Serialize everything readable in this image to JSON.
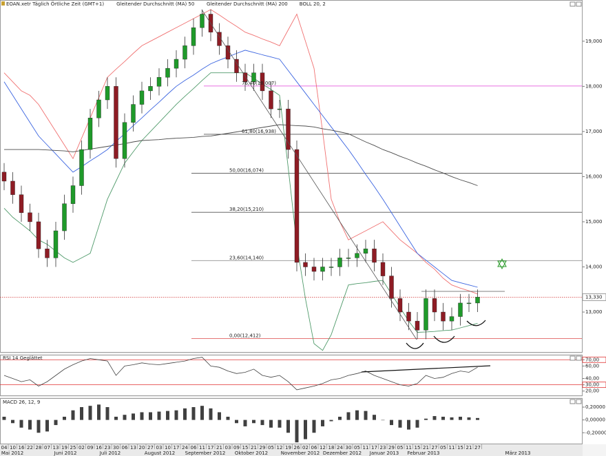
{
  "chart_data": [
    {
      "type": "candlestick",
      "title": "EOAN.xetr Täglich Örtliche Zeit (GMT+1)",
      "categories": [
        "04",
        "10",
        "16",
        "22",
        "28",
        "07",
        "13",
        "19",
        "25",
        "02",
        "09",
        "16",
        "23",
        "30",
        "06",
        "13",
        "20",
        "27",
        "03",
        "10",
        "17",
        "24",
        "06",
        "11",
        "17",
        "21",
        "03",
        "09",
        "15",
        "21",
        "29",
        "05",
        "12",
        "19",
        "26",
        "02",
        "06",
        "12",
        "18",
        "24",
        "30",
        "05",
        "11",
        "17",
        "23",
        "29",
        "05",
        "11",
        "15",
        "21",
        "27",
        "05",
        "11",
        "15",
        "21",
        "27"
      ],
      "periods": [
        "Mai 2012",
        "Juni 2012",
        "Juli 2012",
        "August 2012",
        "September 2012",
        "Oktober 2012",
        "November 2012",
        "Dezember 2012",
        "Januar 2013",
        "Februar 2013",
        "März 2013"
      ],
      "open": [
        16.1,
        15.9,
        15.6,
        15.2,
        15.0,
        14.4,
        14.2,
        14.8,
        15.4,
        15.8,
        16.6,
        17.3,
        17.7,
        18.0,
        16.4,
        17.2,
        17.6,
        17.9,
        18.0,
        18.2,
        18.4,
        18.6,
        18.9,
        19.3,
        19.6,
        19.2,
        18.9,
        18.6,
        18.3,
        18.1,
        18.3,
        17.9,
        17.5,
        17.5,
        16.6,
        14.1,
        14.0,
        13.9,
        14.0,
        14.0,
        14.2,
        14.2,
        14.3,
        14.4,
        14.1,
        13.8,
        13.3,
        13.0,
        12.8,
        12.6,
        13.3,
        13.0,
        12.8,
        12.9,
        13.2,
        13.2
      ],
      "high": [
        16.3,
        16.1,
        15.8,
        15.4,
        15.2,
        14.6,
        15.0,
        15.6,
        16.0,
        16.8,
        17.5,
        17.9,
        18.2,
        18.2,
        17.4,
        17.8,
        18.1,
        18.2,
        18.4,
        18.6,
        18.8,
        19.1,
        19.5,
        19.7,
        19.7,
        19.4,
        19.1,
        18.8,
        18.5,
        18.5,
        18.5,
        18.1,
        17.7,
        17.7,
        16.8,
        14.3,
        14.2,
        14.2,
        14.2,
        14.4,
        14.4,
        14.5,
        14.6,
        14.6,
        14.3,
        14.0,
        13.5,
        13.2,
        13.0,
        13.5,
        13.5,
        13.2,
        13.1,
        13.4,
        13.4,
        13.5
      ],
      "low": [
        15.7,
        15.4,
        15.0,
        14.8,
        14.2,
        14.0,
        14.0,
        14.6,
        15.2,
        15.6,
        16.4,
        17.1,
        17.5,
        16.2,
        16.2,
        17.0,
        17.4,
        17.7,
        17.8,
        18.0,
        18.2,
        18.4,
        18.7,
        19.1,
        19.0,
        18.7,
        18.4,
        18.1,
        17.9,
        17.9,
        17.7,
        17.3,
        17.3,
        16.4,
        13.9,
        13.8,
        13.7,
        13.7,
        13.8,
        13.8,
        14.0,
        14.0,
        14.1,
        13.9,
        13.6,
        13.1,
        12.8,
        12.6,
        12.4,
        12.4,
        12.8,
        12.6,
        12.6,
        12.7,
        13.0,
        13.0
      ],
      "close": [
        15.9,
        15.6,
        15.2,
        15.0,
        14.4,
        14.2,
        14.8,
        15.4,
        15.8,
        16.6,
        17.3,
        17.7,
        18.0,
        16.4,
        17.2,
        17.6,
        17.9,
        18.0,
        18.2,
        18.4,
        18.6,
        18.9,
        19.3,
        19.6,
        19.2,
        18.9,
        18.6,
        18.3,
        18.1,
        18.3,
        17.9,
        17.5,
        17.5,
        16.6,
        14.1,
        14.0,
        13.9,
        14.0,
        14.0,
        14.2,
        14.2,
        14.3,
        14.4,
        14.1,
        13.8,
        13.3,
        13.0,
        12.8,
        12.6,
        13.3,
        13.0,
        12.8,
        12.9,
        13.2,
        13.2,
        13.33
      ],
      "up_color": "#1f9a2a",
      "down_color": "#8e1c24",
      "series": [
        {
          "name": "Gleitender Durchschnitt (MA) 50",
          "color": "#3a64e0",
          "values": [
            18.1,
            17.8,
            17.5,
            17.2,
            16.9,
            16.7,
            16.5,
            16.3,
            16.1,
            16.22,
            16.35,
            16.47,
            16.6,
            16.78,
            16.95,
            17.13,
            17.3,
            17.48,
            17.65,
            17.83,
            18.0,
            18.13,
            18.25,
            18.38,
            18.5,
            18.58,
            18.65,
            18.73,
            18.8,
            18.75,
            18.7,
            18.65,
            18.6,
            18.35,
            18.1,
            17.85,
            17.6,
            17.35,
            17.1,
            16.85,
            16.6,
            16.33,
            16.05,
            15.78,
            15.5,
            15.2,
            14.9,
            14.6,
            14.3,
            14.15,
            14.0,
            13.85,
            13.7,
            13.65,
            13.6,
            13.55
          ]
        },
        {
          "name": "Gleitender Durchschnitt (MA) 200",
          "color": "#4a4a4a",
          "values": [
            16.6,
            16.6,
            16.6,
            16.6,
            16.6,
            16.59,
            16.58,
            16.57,
            16.55,
            16.58,
            16.61,
            16.64,
            16.67,
            16.7,
            16.73,
            16.77,
            16.8,
            16.81,
            16.82,
            16.84,
            16.85,
            16.86,
            16.87,
            16.89,
            16.9,
            16.93,
            16.96,
            16.99,
            17.02,
            17.06,
            17.09,
            17.12,
            17.15,
            17.14,
            17.13,
            17.12,
            17.1,
            17.06,
            17.03,
            16.99,
            16.95,
            16.86,
            16.77,
            16.69,
            16.6,
            16.53,
            16.45,
            16.38,
            16.3,
            16.23,
            16.15,
            16.08,
            16.0,
            15.93,
            15.87,
            15.8
          ]
        }
      ],
      "bollinger": {
        "name": "BOLL 20, 2",
        "upper_color": "#f07070",
        "lower_color": "#4f9a6a",
        "upper": [
          18.3,
          18.1,
          17.9,
          17.8,
          17.6,
          17.3,
          17.0,
          16.7,
          16.4,
          16.85,
          17.3,
          17.75,
          18.2,
          18.38,
          18.55,
          18.73,
          18.9,
          19.0,
          19.1,
          19.2,
          19.3,
          19.4,
          19.5,
          19.6,
          19.7,
          19.58,
          19.45,
          19.33,
          19.2,
          19.13,
          19.05,
          18.98,
          18.9,
          19.25,
          19.6,
          19.0,
          18.4,
          17.0,
          15.5,
          15.0,
          14.6,
          14.7,
          14.8,
          14.9,
          15.0,
          14.8,
          14.6,
          14.45,
          14.3,
          14.1,
          13.95,
          13.75,
          13.6,
          13.53,
          13.47,
          13.4
        ],
        "lower": [
          15.3,
          15.1,
          14.95,
          14.8,
          14.6,
          14.5,
          14.35,
          14.2,
          14.1,
          14.2,
          14.3,
          14.9,
          15.5,
          15.9,
          16.3,
          16.55,
          16.8,
          17.0,
          17.2,
          17.4,
          17.6,
          17.78,
          17.95,
          18.13,
          18.3,
          18.3,
          18.3,
          18.3,
          18.3,
          18.18,
          18.05,
          17.93,
          17.8,
          16.2,
          14.5,
          13.3,
          12.3,
          12.15,
          12.5,
          13.05,
          13.6,
          13.63,
          13.65,
          13.68,
          13.7,
          13.4,
          13.1,
          12.8,
          12.55,
          12.56,
          12.57,
          12.59,
          12.6,
          12.65,
          12.7,
          12.75
        ]
      },
      "fib_levels": [
        {
          "label": "76,40(18,007)",
          "value": 18.007,
          "color": "#e040d8"
        },
        {
          "label": "61,80(16,938)",
          "value": 16.938,
          "color": "#505050"
        },
        {
          "label": "50,00(16,074)",
          "value": 16.074,
          "color": "#505050"
        },
        {
          "label": "38,20(15,210)",
          "value": 15.21,
          "color": "#505050"
        },
        {
          "label": "23,60(14,140)",
          "value": 14.14,
          "color": "#909090"
        },
        {
          "label": "0,00(12,412)",
          "value": 12.412,
          "color": "#e06060"
        }
      ],
      "last": {
        "value": 13.33,
        "label": "13,330",
        "color": "#d03030"
      },
      "ylim": [
        12.1,
        19.76
      ],
      "yticks": [
        {
          "value": 19,
          "label": "19,000"
        },
        {
          "value": 18,
          "label": "18,000"
        },
        {
          "value": 17,
          "label": "17,000"
        },
        {
          "value": 16,
          "label": "16,000"
        },
        {
          "value": 15,
          "label": "15,000"
        },
        {
          "value": 14,
          "label": "14,000"
        },
        {
          "value": 13,
          "label": "13,000"
        }
      ]
    },
    {
      "type": "line",
      "title": "RSI 14 Geglättet",
      "color": "#404040",
      "values": [
        45,
        40,
        35,
        38,
        28,
        35,
        45,
        55,
        62,
        68,
        72,
        70,
        68,
        45,
        60,
        62,
        65,
        63,
        62,
        64,
        66,
        68,
        72,
        74,
        60,
        58,
        52,
        48,
        50,
        55,
        45,
        42,
        45,
        35,
        22,
        25,
        28,
        32,
        38,
        40,
        45,
        48,
        52,
        45,
        40,
        35,
        30,
        28,
        32,
        45,
        40,
        42,
        48,
        52,
        50,
        58
      ],
      "levels": [
        70,
        30
      ],
      "level_color": "#e03030",
      "ylim": [
        12,
        78
      ],
      "yticks": [
        {
          "value": 70,
          "label": "70,00"
        },
        {
          "value": 60,
          "label": "60,00"
        },
        {
          "value": 40,
          "label": "40,00"
        },
        {
          "value": 30,
          "label": "30,00"
        },
        {
          "value": 20,
          "label": "20,00"
        }
      ]
    },
    {
      "type": "bar",
      "title": "MACD 26, 12, 9",
      "color": "#404040",
      "values": [
        0.05,
        -0.05,
        -0.12,
        -0.15,
        -0.2,
        -0.18,
        -0.08,
        0.05,
        0.15,
        0.2,
        0.22,
        0.24,
        0.2,
        0.05,
        0.08,
        0.1,
        0.12,
        0.12,
        0.13,
        0.14,
        0.15,
        0.18,
        0.2,
        0.22,
        0.18,
        0.12,
        0.05,
        -0.05,
        -0.1,
        -0.05,
        -0.08,
        -0.12,
        -0.12,
        -0.2,
        -0.35,
        -0.3,
        -0.2,
        -0.1,
        -0.02,
        0.05,
        0.12,
        0.15,
        0.14,
        0.08,
        0.0,
        -0.08,
        -0.12,
        -0.15,
        -0.12,
        0.02,
        0.06,
        0.05,
        0.04,
        0.05,
        0.04,
        0.03
      ],
      "ylim": [
        -0.38,
        0.34
      ],
      "yticks": [
        {
          "value": 0.2,
          "label": "0,20000"
        },
        {
          "value": 0,
          "label": "0,00000"
        },
        {
          "value": -0.2,
          "label": "-0,20000"
        }
      ]
    }
  ]
}
